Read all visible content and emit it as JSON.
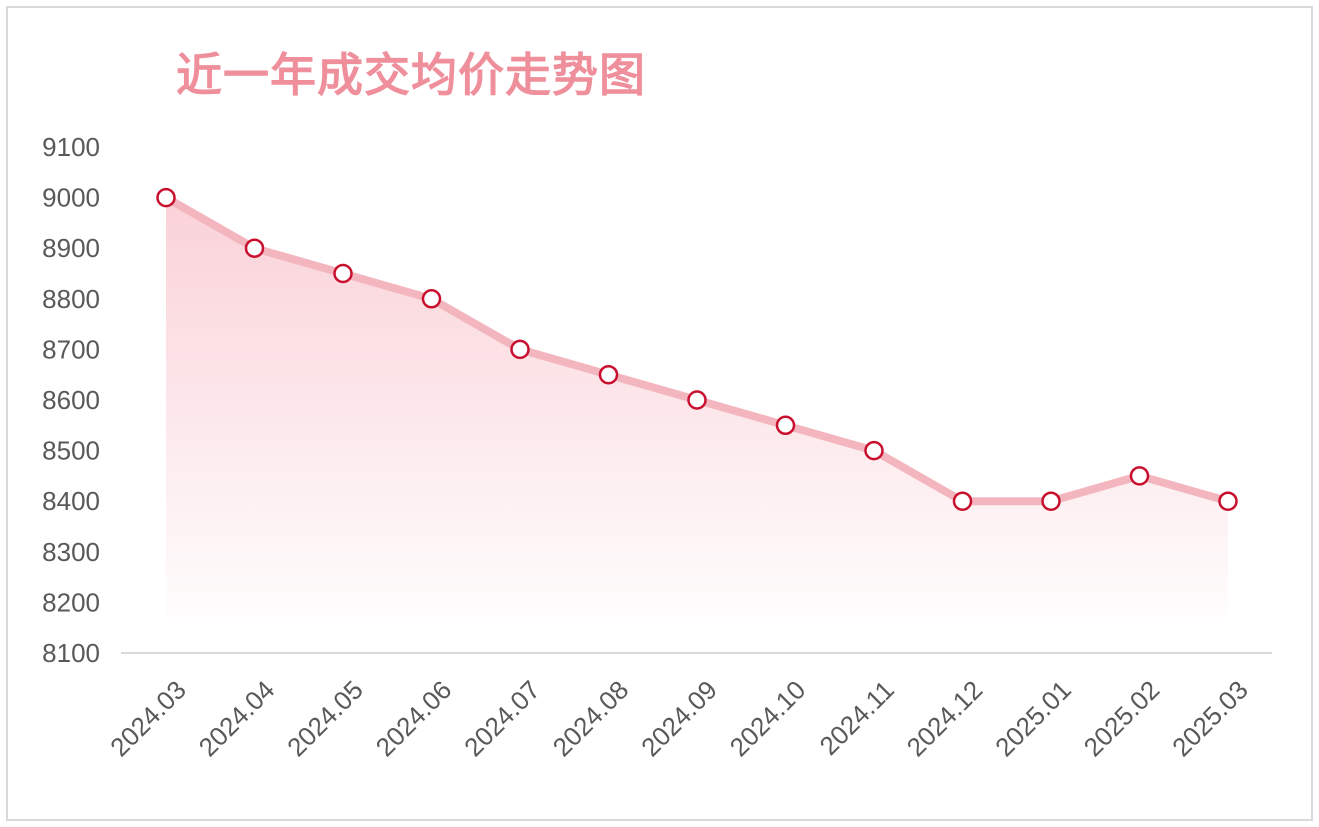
{
  "chart_data": {
    "type": "area",
    "title": "近一年成交均价走势图",
    "xlabel": "",
    "ylabel": "",
    "categories": [
      "2024.03",
      "2024.04",
      "2024.05",
      "2024.06",
      "2024.07",
      "2024.08",
      "2024.09",
      "2024.10",
      "2024.11",
      "2024.12",
      "2025.01",
      "2025.02",
      "2025.03"
    ],
    "series": [
      {
        "values": [
          9000,
          8900,
          8850,
          8800,
          8700,
          8650,
          8600,
          8550,
          8500,
          8400,
          8400,
          8450,
          8400
        ]
      }
    ],
    "ylim": [
      8100,
      9100
    ],
    "yticks": [
      9100,
      9000,
      8900,
      8800,
      8700,
      8600,
      8500,
      8400,
      8300,
      8200,
      8100
    ],
    "grid": false,
    "legend": "none",
    "colors": {
      "line": "#f3b6bf",
      "marker_stroke": "#c8102e",
      "marker_fill": "#ffffff",
      "area_top": "#f8c3cb",
      "title": "#ef8f9b",
      "axis": "#d9d9d9",
      "tick_text": "#595959"
    }
  }
}
